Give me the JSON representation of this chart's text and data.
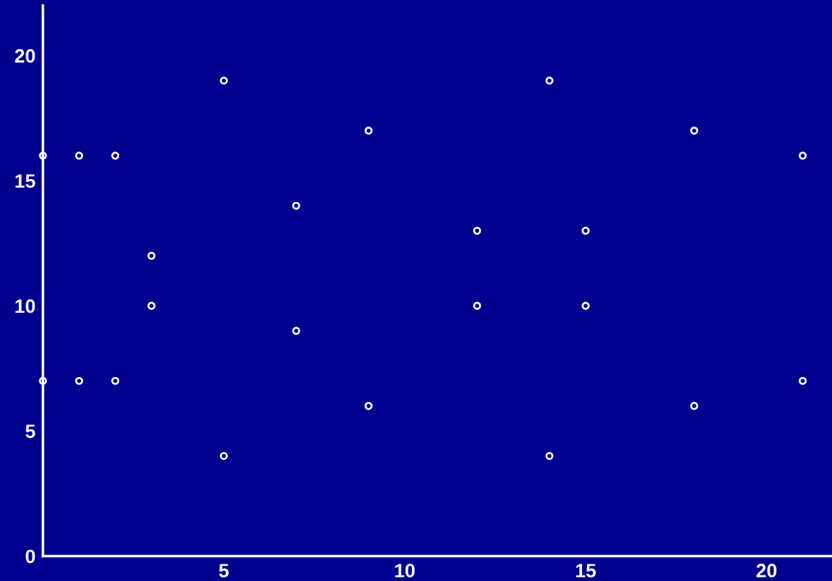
{
  "chart_data": {
    "type": "scatter",
    "x": [
      0,
      0,
      1,
      1,
      2,
      2,
      3,
      3,
      5,
      5,
      7,
      7,
      9,
      9,
      12,
      12,
      14,
      14,
      15,
      15,
      18,
      18,
      21,
      21
    ],
    "values": [
      16,
      7,
      16,
      7,
      16,
      7,
      12,
      10,
      19,
      4,
      14,
      9,
      17,
      6,
      13,
      10,
      19,
      4,
      13,
      10,
      17,
      6,
      16,
      7
    ],
    "color": "#ffffff",
    "marker": "circle",
    "xlim": [
      0,
      21.8
    ],
    "ylim": [
      0,
      22
    ],
    "xticks": [
      5,
      10,
      15,
      20
    ],
    "yticks": [
      0,
      5,
      10,
      15,
      20
    ],
    "grid": false
  }
}
